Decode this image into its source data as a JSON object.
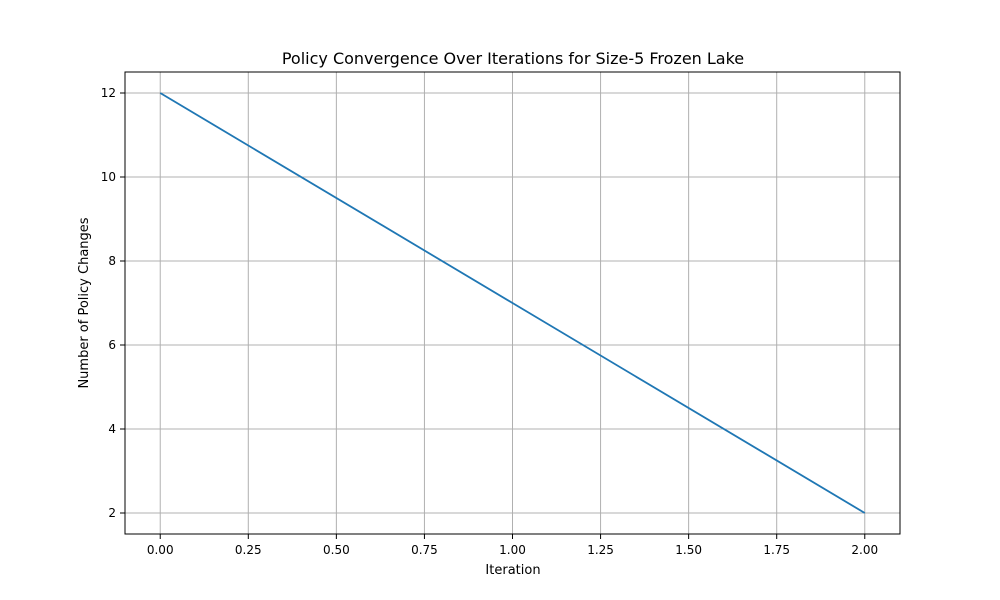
{
  "chart_data": {
    "type": "line",
    "title": "Policy Convergence Over Iterations for Size-5 Frozen Lake",
    "xlabel": "Iteration",
    "ylabel": "Number of Policy Changes",
    "x": [
      0,
      1,
      2
    ],
    "series": [
      {
        "values": [
          12,
          7,
          2
        ],
        "color": "#1f77b4"
      }
    ],
    "xlim": [
      -0.1,
      2.1
    ],
    "ylim": [
      1.5,
      12.5
    ],
    "xticks": [
      0.0,
      0.25,
      0.5,
      0.75,
      1.0,
      1.25,
      1.5,
      1.75,
      2.0
    ],
    "xtick_labels": [
      "0.00",
      "0.25",
      "0.50",
      "0.75",
      "1.00",
      "1.25",
      "1.50",
      "1.75",
      "2.00"
    ],
    "yticks": [
      2,
      4,
      6,
      8,
      10,
      12
    ],
    "ytick_labels": [
      "2",
      "4",
      "6",
      "8",
      "10",
      "12"
    ],
    "grid": true,
    "colors": {
      "grid": "#b0b0b0",
      "frame": "#000000"
    }
  }
}
